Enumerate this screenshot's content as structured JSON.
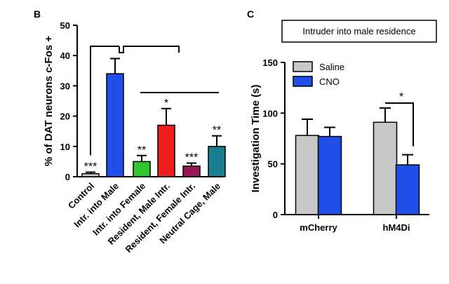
{
  "panels": {
    "b_letter": "B",
    "c_letter": "C"
  },
  "chart_data": [
    {
      "type": "bar",
      "ylabel": "% of DAT neurons c-Fos +",
      "ylim": [
        0,
        50
      ],
      "yticks": [
        0,
        10,
        20,
        30,
        40,
        50
      ],
      "categories": [
        "Control",
        "Intr. into Male",
        "Intr. into Female",
        "Resident, Male Intr.",
        "Resident, Female Intr.",
        "Neutral Cage, Male"
      ],
      "values": [
        1,
        34,
        5,
        17,
        3.5,
        10
      ],
      "errors": [
        0.5,
        5,
        2,
        5.5,
        1,
        3.5
      ],
      "colors": [
        "#c8c8c8",
        "#1f4fe8",
        "#2ec62e",
        "#f01e1e",
        "#9a1458",
        "#1a7f90"
      ],
      "significance": [
        "***",
        "",
        "**",
        "*",
        "***",
        "**"
      ],
      "comparison_bracket": {
        "from": "Control",
        "to": "Intr. into Male"
      }
    },
    {
      "type": "bar",
      "title": "Intruder into male residence",
      "ylabel": "Investigation Time (s)",
      "ylim": [
        0,
        150
      ],
      "yticks": [
        0,
        50,
        100,
        150
      ],
      "categories": [
        "mCherry",
        "hM4Di"
      ],
      "series": [
        {
          "name": "Saline",
          "color": "#c8c8c8",
          "values": [
            78,
            91
          ],
          "errors": [
            16,
            14
          ]
        },
        {
          "name": "CNO",
          "color": "#1f4fe8",
          "values": [
            77,
            49
          ],
          "errors": [
            9,
            10
          ]
        }
      ],
      "legend_position": "top-left",
      "significance": [
        {
          "category": "hM4Di",
          "label": "*"
        }
      ]
    }
  ]
}
